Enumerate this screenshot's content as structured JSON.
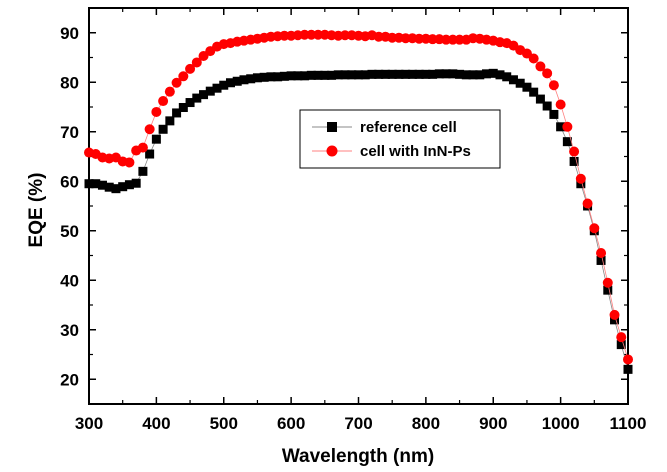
{
  "chart_data": {
    "type": "scatter",
    "xlabel": "Wavelength (nm)",
    "ylabel": "EQE (%)",
    "xlim": [
      300,
      1100
    ],
    "ylim": [
      15,
      95
    ],
    "xticks": [
      300,
      400,
      500,
      600,
      700,
      800,
      900,
      1000,
      1100
    ],
    "yticks": [
      20,
      30,
      40,
      50,
      60,
      70,
      80,
      90
    ],
    "grid": false,
    "legend_position": "upper-center",
    "series": [
      {
        "name": "reference cell",
        "color": "#000000",
        "marker": "square",
        "x": [
          300,
          310,
          320,
          330,
          340,
          350,
          360,
          370,
          380,
          390,
          400,
          410,
          420,
          430,
          440,
          450,
          460,
          470,
          480,
          490,
          500,
          510,
          520,
          530,
          540,
          550,
          560,
          570,
          580,
          590,
          600,
          610,
          620,
          630,
          640,
          650,
          660,
          670,
          680,
          690,
          700,
          710,
          720,
          730,
          740,
          750,
          760,
          770,
          780,
          790,
          800,
          810,
          820,
          830,
          840,
          850,
          860,
          870,
          880,
          890,
          900,
          910,
          920,
          930,
          940,
          950,
          960,
          970,
          980,
          990,
          1000,
          1010,
          1020,
          1030,
          1040,
          1050,
          1060,
          1070,
          1080,
          1090,
          1100
        ],
        "y": [
          59.5,
          59.5,
          59.2,
          58.8,
          58.5,
          58.9,
          59.3,
          59.6,
          62,
          65.5,
          68.5,
          70.5,
          72.2,
          73.8,
          74.9,
          75.9,
          76.8,
          77.5,
          78.2,
          78.8,
          79.4,
          79.9,
          80.2,
          80.5,
          80.7,
          80.9,
          81.0,
          81.1,
          81.1,
          81.2,
          81.3,
          81.3,
          81.3,
          81.4,
          81.4,
          81.4,
          81.4,
          81.5,
          81.5,
          81.5,
          81.5,
          81.5,
          81.6,
          81.6,
          81.6,
          81.6,
          81.6,
          81.6,
          81.6,
          81.6,
          81.6,
          81.6,
          81.7,
          81.7,
          81.7,
          81.6,
          81.5,
          81.5,
          81.5,
          81.7,
          81.8,
          81.5,
          81.1,
          80.5,
          79.8,
          79.0,
          78.0,
          76.6,
          75.2,
          73.5,
          71.0,
          68.0,
          64.0,
          59.5,
          55.0,
          50.0,
          44.0,
          38.0,
          32.0,
          27.0,
          22.0
        ]
      },
      {
        "name": "cell with InN-Ps",
        "color": "#ff0000",
        "marker": "circle",
        "x": [
          300,
          310,
          320,
          330,
          340,
          350,
          360,
          370,
          380,
          390,
          400,
          410,
          420,
          430,
          440,
          450,
          460,
          470,
          480,
          490,
          500,
          510,
          520,
          530,
          540,
          550,
          560,
          570,
          580,
          590,
          600,
          610,
          620,
          630,
          640,
          650,
          660,
          670,
          680,
          690,
          700,
          710,
          720,
          730,
          740,
          750,
          760,
          770,
          780,
          790,
          800,
          810,
          820,
          830,
          840,
          850,
          860,
          870,
          880,
          890,
          900,
          910,
          920,
          930,
          940,
          950,
          960,
          970,
          980,
          990,
          1000,
          1010,
          1020,
          1030,
          1040,
          1050,
          1060,
          1070,
          1080,
          1090,
          1100
        ],
        "y": [
          65.8,
          65.5,
          64.8,
          64.6,
          64.8,
          64.0,
          63.8,
          66.2,
          66.8,
          70.5,
          74.0,
          76.2,
          78.1,
          79.9,
          81.2,
          82.7,
          84.0,
          85.3,
          86.3,
          87.2,
          87.7,
          87.9,
          88.2,
          88.4,
          88.6,
          88.8,
          89.0,
          89.2,
          89.3,
          89.4,
          89.4,
          89.5,
          89.6,
          89.6,
          89.6,
          89.6,
          89.5,
          89.4,
          89.5,
          89.5,
          89.4,
          89.3,
          89.5,
          89.2,
          89.2,
          89.0,
          89.0,
          88.9,
          88.9,
          88.8,
          88.8,
          88.7,
          88.7,
          88.6,
          88.6,
          88.6,
          88.6,
          88.9,
          88.8,
          88.6,
          88.4,
          88.1,
          87.9,
          87.4,
          86.5,
          85.8,
          84.8,
          83.2,
          81.8,
          79.4,
          75.5,
          71.0,
          66.0,
          60.5,
          55.5,
          50.5,
          45.5,
          39.5,
          33.0,
          28.5,
          24.0
        ]
      }
    ]
  }
}
